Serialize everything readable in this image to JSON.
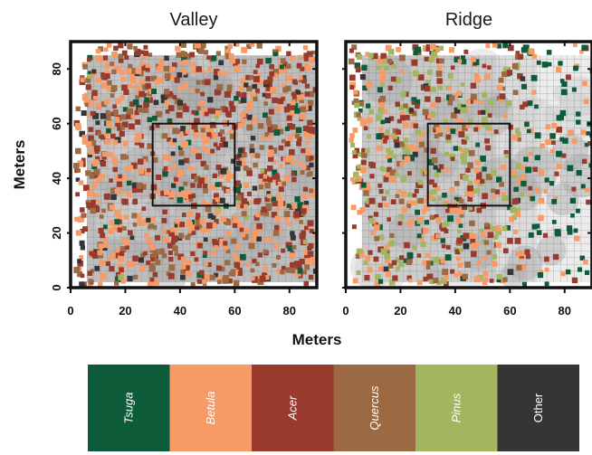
{
  "chart_data": [
    {
      "type": "scatter",
      "title": "Valley",
      "xlabel": "Meters",
      "ylabel": "Meters",
      "xlim": [
        0,
        90
      ],
      "ylim": [
        0,
        90
      ],
      "xticks": [
        "0",
        "20",
        "40",
        "60",
        "80"
      ],
      "yticks": [
        "0",
        "20",
        "40",
        "60",
        "80"
      ],
      "core_box": {
        "x": [
          30,
          60
        ],
        "y": [
          30,
          60
        ]
      },
      "species_mix": {
        "Tsuga": 0.04,
        "Betula": 0.34,
        "Acer": 0.33,
        "Quercus": 0.22,
        "Pinus": 0.01,
        "Other": 0.06
      },
      "stems_shown": 1150
    },
    {
      "type": "scatter",
      "title": "Ridge",
      "xlabel": "Meters",
      "ylabel": "",
      "xlim": [
        0,
        90
      ],
      "ylim": [
        0,
        90
      ],
      "xticks": [
        "0",
        "20",
        "40",
        "60",
        "80"
      ],
      "yticks": [],
      "core_box": {
        "x": [
          30,
          60
        ],
        "y": [
          30,
          60
        ]
      },
      "species_mix": {
        "Tsuga": 0.08,
        "Betula": 0.27,
        "Acer": 0.28,
        "Quercus": 0.14,
        "Pinus": 0.19,
        "Other": 0.04
      },
      "stems_shown": 900
    }
  ],
  "shared_xlabel": "Meters",
  "legend": [
    {
      "name": "Tsuga",
      "color": "#0d5b38",
      "italic": true
    },
    {
      "name": "Betula",
      "color": "#f79a66",
      "italic": true
    },
    {
      "name": "Acer",
      "color": "#983a2c",
      "italic": true
    },
    {
      "name": "Quercus",
      "color": "#9b6a43",
      "italic": true
    },
    {
      "name": "Pinus",
      "color": "#a1b65f",
      "italic": true
    },
    {
      "name": "Other",
      "color": "#363536",
      "italic": false
    }
  ]
}
